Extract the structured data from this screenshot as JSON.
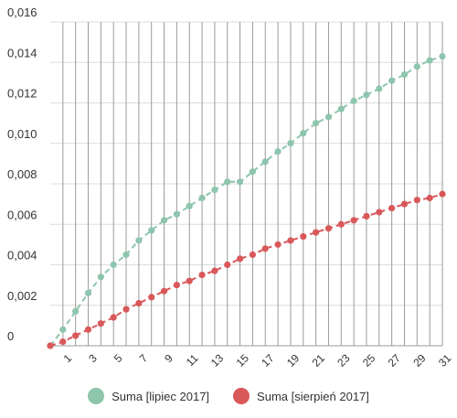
{
  "chart_data": {
    "type": "line",
    "title": "",
    "xlabel": "",
    "ylabel": "",
    "ylim": [
      0,
      0.016
    ],
    "y_ticks": [
      "0",
      "0,002",
      "0,004",
      "0,006",
      "0,008",
      "0,010",
      "0,012",
      "0,014",
      "0,016"
    ],
    "x": [
      0,
      1,
      2,
      3,
      4,
      5,
      6,
      7,
      8,
      9,
      10,
      11,
      12,
      13,
      14,
      15,
      16,
      17,
      18,
      19,
      20,
      21,
      22,
      23,
      24,
      25,
      26,
      27,
      28,
      29,
      30,
      31
    ],
    "x_tick_labels": [
      "1",
      "3",
      "5",
      "7",
      "9",
      "11",
      "13",
      "15",
      "17",
      "19",
      "21",
      "23",
      "25",
      "27",
      "29",
      "31"
    ],
    "grid": true,
    "legend_position": "bottom",
    "series": [
      {
        "name": "Suma [lipiec 2017]",
        "color": "#8ec5ad",
        "values": [
          0,
          0.0008,
          0.0017,
          0.0026,
          0.0034,
          0.004,
          0.0045,
          0.0052,
          0.0057,
          0.0062,
          0.0065,
          0.0069,
          0.0073,
          0.0077,
          0.0081,
          0.0081,
          0.0086,
          0.0091,
          0.0096,
          0.01,
          0.0105,
          0.011,
          0.0113,
          0.0117,
          0.0121,
          0.0124,
          0.0127,
          0.0131,
          0.0134,
          0.0138,
          0.0141,
          0.0143
        ]
      },
      {
        "name": "Suma [sierpień 2017]",
        "color": "#d9585a",
        "values": [
          0,
          0.0002,
          0.0005,
          0.0008,
          0.0011,
          0.0014,
          0.0018,
          0.0021,
          0.0024,
          0.0027,
          0.003,
          0.0032,
          0.0035,
          0.0037,
          0.004,
          0.0043,
          0.0045,
          0.0048,
          0.005,
          0.0052,
          0.0054,
          0.0056,
          0.0058,
          0.006,
          0.0062,
          0.0064,
          0.0066,
          0.0068,
          0.007,
          0.0072,
          0.0073,
          0.0075
        ]
      }
    ]
  }
}
